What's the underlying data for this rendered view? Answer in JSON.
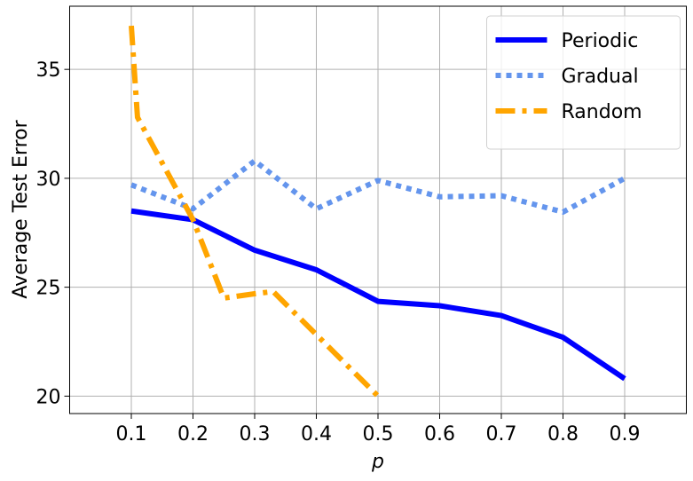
{
  "chart_data": {
    "type": "line",
    "x_label": "p",
    "y_label": "Average Test Error",
    "xlim": [
      0,
      1.0
    ],
    "ylim": [
      19.2,
      37.9
    ],
    "xticks": [
      0.1,
      0.2,
      0.3,
      0.4,
      0.5,
      0.6,
      0.7,
      0.8,
      0.9
    ],
    "yticks": [
      20,
      25,
      30,
      35
    ],
    "grid": true,
    "legend": "upper right",
    "series": [
      {
        "name": "Periodic",
        "color": "#0000ff",
        "style": "solid",
        "x": [
          0.1,
          0.2,
          0.3,
          0.4,
          0.5,
          0.6,
          0.7,
          0.8,
          0.9
        ],
        "values": [
          28.5,
          28.1,
          26.7,
          25.8,
          24.35,
          24.15,
          23.7,
          22.7,
          20.8
        ]
      },
      {
        "name": "Gradual",
        "color": "#6495ed",
        "style": "dotted",
        "x": [
          0.1,
          0.2,
          0.3,
          0.4,
          0.5,
          0.6,
          0.7,
          0.8,
          0.9
        ],
        "values": [
          29.7,
          28.6,
          30.8,
          28.6,
          29.9,
          29.15,
          29.2,
          28.45,
          30.0
        ]
      },
      {
        "name": "Random",
        "color": "#ffa500",
        "style": "dashdot",
        "x": [
          0.1,
          0.11,
          0.2,
          0.25,
          0.3,
          0.33,
          0.5
        ],
        "values": [
          37,
          32.8,
          28.1,
          24.5,
          24.7,
          24.8,
          20
        ]
      }
    ]
  }
}
